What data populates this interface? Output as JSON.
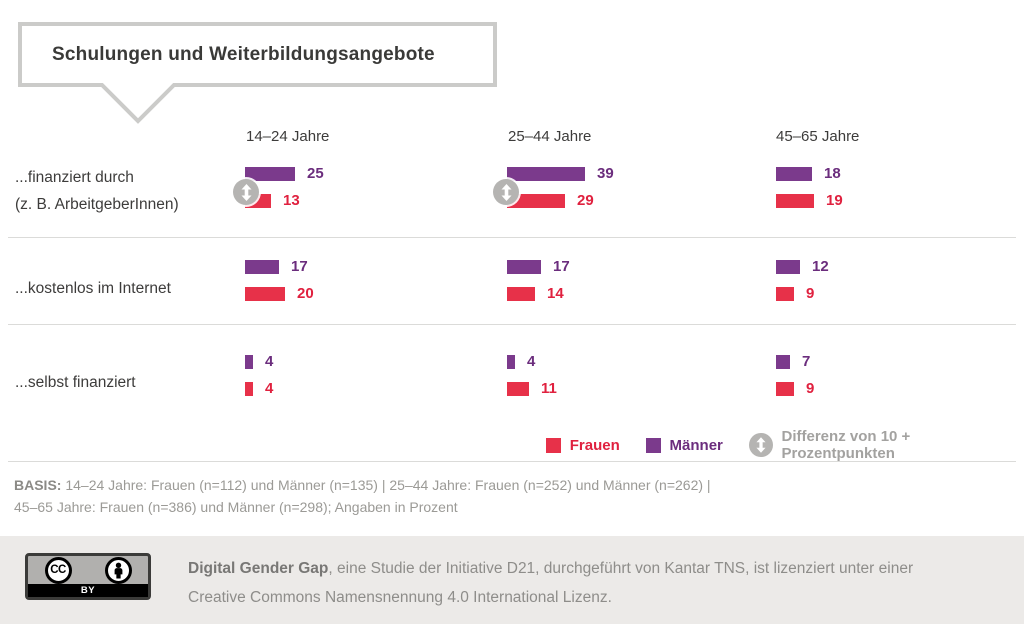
{
  "legend": {
    "frauen": "Frauen",
    "maenner": "Männer",
    "diff": "Differenz von 10 + Prozentpunkten"
  },
  "basis": {
    "label": "BASIS:",
    "line1": " 14–24 Jahre: Frauen (n=112) und Männer (n=135) | 25–44 Jahre: Frauen (n=252) und Männer (n=262) |",
    "line2": "45–65 Jahre: Frauen (n=386) und Männer (n=298); Angaben in Prozent"
  },
  "footer": {
    "cc_label": "CC",
    "by_label": "BY",
    "bold": "Digital Gender Gap",
    "line1_rest": ", eine Studie der Initiative D21, durchgeführt von Kantar TNS, ist lizenziert unter einer",
    "line2": "Creative Commons Namensnennung 4.0 International Lizenz."
  },
  "colors": {
    "maenner_bar": "#7b3a8c",
    "frauen_bar": "#e73149",
    "maenner_text": "#6b2d7d",
    "frauen_text": "#e0213f",
    "diff_gray": "#b5b4b2"
  },
  "chart_data": {
    "type": "bar",
    "title": "Schulungen und Weiterbildungsangebote",
    "unit": "Prozent",
    "orientation": "horizontal",
    "categories": [
      "14–24 Jahre",
      "25–44 Jahre",
      "45–65 Jahre"
    ],
    "series_names": [
      "Männer",
      "Frauen"
    ],
    "legend_note": "Differenz von 10 + Prozentpunkten",
    "groups": [
      {
        "label": "...finanziert durch (z. B. ArbeitgeberInnen)",
        "label_lines": [
          "...finanziert durch",
          "(z. B. ArbeitgeberInnen)"
        ],
        "cells": [
          {
            "maenner": 25,
            "frauen": 13,
            "diff10plus": true
          },
          {
            "maenner": 39,
            "frauen": 29,
            "diff10plus": true
          },
          {
            "maenner": 18,
            "frauen": 19,
            "diff10plus": false
          }
        ]
      },
      {
        "label": "...kostenlos im Internet",
        "label_lines": [
          "...kostenlos im Internet"
        ],
        "cells": [
          {
            "maenner": 17,
            "frauen": 20,
            "diff10plus": false
          },
          {
            "maenner": 17,
            "frauen": 14,
            "diff10plus": false
          },
          {
            "maenner": 12,
            "frauen": 9,
            "diff10plus": false
          }
        ]
      },
      {
        "label": "...selbst finanziert",
        "label_lines": [
          "...selbst finanziert"
        ],
        "cells": [
          {
            "maenner": 4,
            "frauen": 4,
            "diff10plus": false
          },
          {
            "maenner": 4,
            "frauen": 11,
            "diff10plus": false
          },
          {
            "maenner": 7,
            "frauen": 9,
            "diff10plus": false
          }
        ]
      }
    ]
  }
}
